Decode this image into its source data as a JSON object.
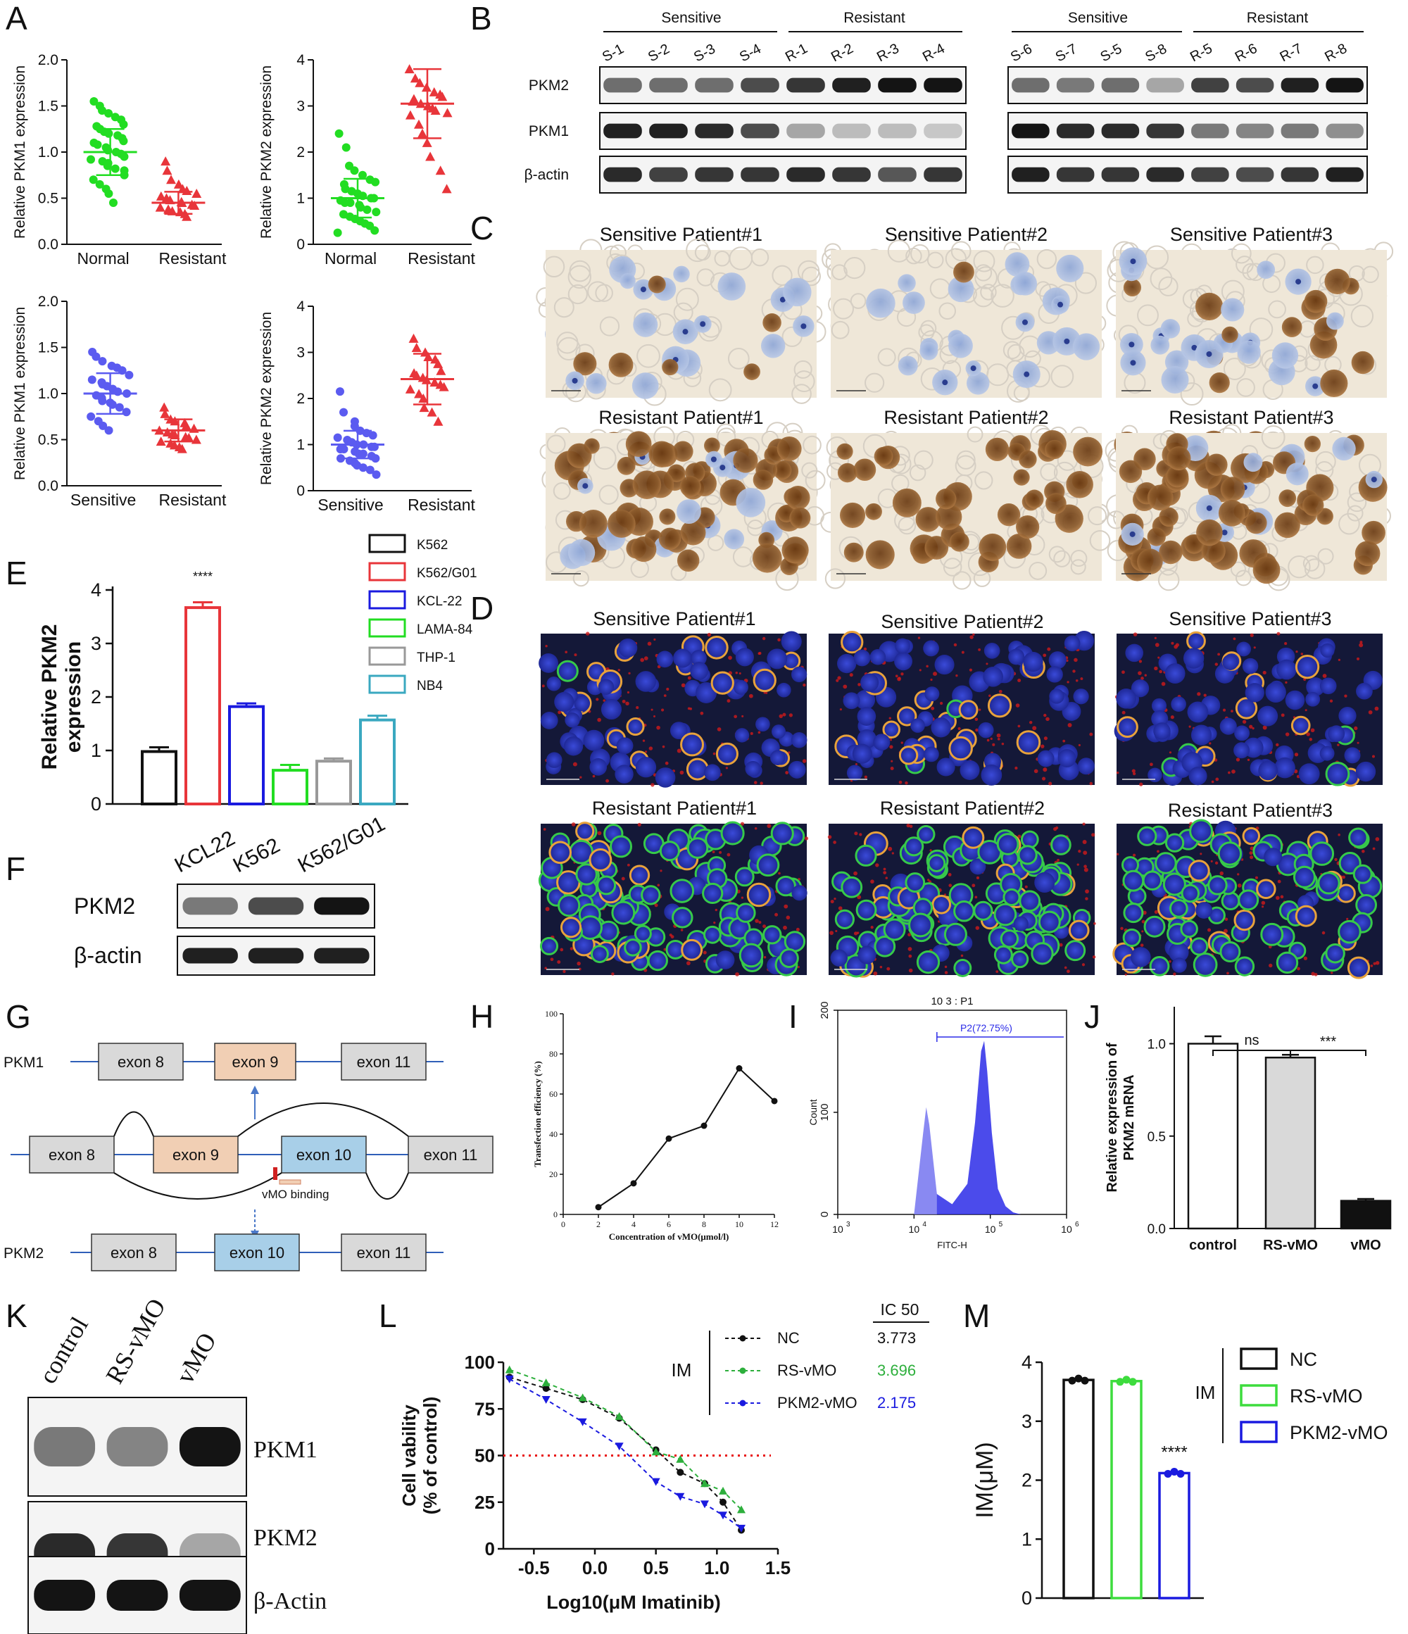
{
  "colors": {
    "green": "#22dd22",
    "red": "#e8353a",
    "blue": "#5b5bf0",
    "black": "#111111",
    "ihc_bg": "#efe7d8",
    "if_bg": "#141838",
    "exon_gray": "#d9d9d9",
    "exon_orange": "#f1cfb4",
    "exon_blue": "#a8cfe8",
    "nc_green": "#2daf3c",
    "pkm2_blue": "#1a1adf",
    "cutoff_red": "#e81010"
  },
  "panel_labels": [
    "A",
    "B",
    "C",
    "D",
    "E",
    "F",
    "G",
    "H",
    "I",
    "J",
    "K",
    "L",
    "M"
  ],
  "panel_a": {
    "plots": [
      {
        "ylabel": "Relative PKM1 expression",
        "ticks": [
          "0.0",
          "0.5",
          "1.0",
          "1.5",
          "2.0"
        ],
        "groups": [
          "Normal",
          "Resistant"
        ]
      },
      {
        "ylabel": "Relative PKM2 expression",
        "ticks": [
          "0",
          "1",
          "2",
          "3",
          "4"
        ],
        "groups": [
          "Normal",
          "Resistant"
        ]
      },
      {
        "ylabel": "Relative PKM1 expression",
        "ticks": [
          "0.0",
          "0.5",
          "1.0",
          "1.5",
          "2.0"
        ],
        "groups": [
          "Sensitive",
          "Resistant"
        ]
      },
      {
        "ylabel": "Relative PKM2 expression",
        "ticks": [
          "0",
          "1",
          "2",
          "3",
          "4"
        ],
        "groups": [
          "Sensitive",
          "Resistant"
        ]
      }
    ]
  },
  "panel_b": {
    "left": {
      "sensitive": "Sensitive",
      "resistant": "Resistant",
      "lanes": [
        "S-1",
        "S-2",
        "S-3",
        "S-4",
        "R-1",
        "R-2",
        "R-3",
        "R-4"
      ]
    },
    "right": {
      "sensitive": "Sensitive",
      "resistant": "Resistant",
      "lanes": [
        "S-6",
        "S-7",
        "S-5",
        "S-8",
        "R-5",
        "R-6",
        "R-7",
        "R-8"
      ]
    },
    "rows": [
      "PKM2",
      "PKM1",
      "β-actin"
    ]
  },
  "panel_c": {
    "titles": [
      "Sensitive Patient#1",
      "Sensitive Patient#2",
      "Sensitive Patient#3",
      "Resistant Patient#1",
      "Resistant Patient#2",
      "Resistant Patient#3"
    ]
  },
  "panel_d": {
    "titles": [
      "Sensitive Patient#1",
      "Sensitive Patient#2",
      "Sensitive Patient#3",
      "Resistant Patient#1",
      "Resistant Patient#2",
      "Resistant Patient#3"
    ]
  },
  "panel_e": {
    "ylabel_line1": "Relative PKM2",
    "ylabel_line2": "expression",
    "ticks": [
      "0",
      "1",
      "2",
      "3",
      "4"
    ],
    "significance": "****",
    "legend": [
      "K562",
      "K562/G01",
      "KCL-22",
      "LAMA-84",
      "THP-1",
      "NB4"
    ]
  },
  "panel_f": {
    "lanes": [
      "KCL22",
      "K562",
      "K562/G01"
    ],
    "rows": [
      "PKM2",
      "β-actin"
    ]
  },
  "panel_g": {
    "pkm1": "PKM1",
    "pkm2": "PKM2",
    "exon8": "exon 8",
    "exon9": "exon 9",
    "exon10": "exon 10",
    "exon11": "exon 11",
    "binding": "vMO binding"
  },
  "panel_h": {
    "ylabel": "Transfection efficiency (%)",
    "xlabel": "Concentration of vMO(μmol/l)",
    "yticks": [
      "0",
      "20",
      "40",
      "60",
      "80",
      "100"
    ],
    "xticks": [
      "0",
      "2",
      "4",
      "6",
      "8",
      "10",
      "12"
    ]
  },
  "panel_i": {
    "title": "10 3 : P1",
    "gate": "P2(72.75%)",
    "ylabel": "Count",
    "xlabel": "FITC-H",
    "yticks": [
      "0",
      "100",
      "200"
    ],
    "xticks": [
      "3",
      "4",
      "5",
      "6"
    ]
  },
  "panel_j": {
    "ylabel_line1": "Relative expression of",
    "ylabel_line2": "PKM2 mRNA",
    "ticks": [
      "0.0",
      "0.5",
      "1.0"
    ],
    "categories": [
      "control",
      "RS-vMO",
      "vMO"
    ],
    "sig1": "ns",
    "sig2": "***"
  },
  "panel_k": {
    "lanes": [
      "control",
      "RS-vMO",
      "vMO"
    ],
    "rows": [
      "PKM1",
      "PKM2",
      "β-Actin"
    ]
  },
  "panel_l": {
    "ylabel_line1": "Cell vability",
    "ylabel_line2": "(% of control)",
    "xlabel": "Log10(μM Imatinib)",
    "yticks": [
      "0",
      "25",
      "50",
      "75",
      "100"
    ],
    "xticks": [
      "-0.5",
      "0.0",
      "0.5",
      "1.0",
      "1.5"
    ],
    "ic50_header": "IC 50",
    "im_label": "IM",
    "legend": [
      {
        "name": "NC",
        "ic50": "3.773"
      },
      {
        "name": "RS-vMO",
        "ic50": "3.696"
      },
      {
        "name": "PKM2-vMO",
        "ic50": "2.175"
      }
    ]
  },
  "panel_m": {
    "ylabel": "IM(μM)",
    "ticks": [
      "0",
      "1",
      "2",
      "3",
      "4"
    ],
    "significance": "****",
    "im_label": "IM",
    "legend": [
      "NC",
      "RS-vMO",
      "PKM2-vMO"
    ]
  },
  "chart_data": [
    {
      "type": "scatter",
      "panel": "A1",
      "categories": [
        "Normal",
        "Resistant"
      ],
      "series": [
        {
          "values": [
            1.55,
            1.5,
            1.45,
            1.42,
            1.38,
            1.35,
            1.3,
            1.28,
            1.25,
            1.22,
            1.2,
            1.18,
            1.15,
            1.12,
            1.1,
            1.08,
            1.05,
            1.02,
            1.0,
            0.98,
            0.95,
            0.92,
            0.9,
            0.88,
            0.85,
            0.82,
            0.8,
            0.75,
            0.7,
            0.65,
            0.6,
            0.55,
            0.45
          ]
        },
        {
          "values": [
            0.9,
            0.8,
            0.7,
            0.65,
            0.6,
            0.58,
            0.55,
            0.52,
            0.5,
            0.48,
            0.46,
            0.45,
            0.43,
            0.42,
            0.4,
            0.38,
            0.36,
            0.35,
            0.33,
            0.3
          ]
        }
      ],
      "mean": [
        1.0,
        0.45
      ],
      "sd": [
        0.25,
        0.12
      ],
      "ylim": [
        0,
        2
      ]
    },
    {
      "type": "scatter",
      "panel": "A2",
      "categories": [
        "Normal",
        "Resistant"
      ],
      "series": [
        {
          "values": [
            2.4,
            2.1,
            1.7,
            1.6,
            1.5,
            1.4,
            1.35,
            1.3,
            1.2,
            1.15,
            1.1,
            1.05,
            1.0,
            1.0,
            0.95,
            0.9,
            0.9,
            0.85,
            0.8,
            0.75,
            0.7,
            0.65,
            0.6,
            0.55,
            0.5,
            0.45,
            0.4,
            0.3,
            0.25
          ]
        },
        {
          "values": [
            3.8,
            3.6,
            3.5,
            3.4,
            3.3,
            3.25,
            3.2,
            3.15,
            3.1,
            3.05,
            3.0,
            2.95,
            2.9,
            2.85,
            2.8,
            2.6,
            2.4,
            2.2,
            1.9,
            1.6,
            1.2
          ]
        },
        "mean_sd"
      ],
      "mean": [
        1.0,
        3.05
      ],
      "sd": [
        0.42,
        0.75
      ],
      "ylim": [
        0,
        4
      ]
    },
    {
      "type": "scatter",
      "panel": "A3",
      "categories": [
        "Sensitive",
        "Resistant"
      ],
      "series": [
        {
          "values": [
            1.45,
            1.4,
            1.35,
            1.3,
            1.28,
            1.25,
            1.2,
            1.15,
            1.12,
            1.1,
            1.08,
            1.05,
            1.02,
            1.0,
            0.98,
            0.95,
            0.92,
            0.9,
            0.88,
            0.85,
            0.8,
            0.75,
            0.7,
            0.65,
            0.6
          ]
        },
        {
          "values": [
            0.85,
            0.78,
            0.72,
            0.7,
            0.68,
            0.65,
            0.62,
            0.6,
            0.58,
            0.56,
            0.55,
            0.53,
            0.52,
            0.5,
            0.48,
            0.46,
            0.44,
            0.42,
            0.4
          ]
        }
      ],
      "mean": [
        1.0,
        0.6
      ],
      "sd": [
        0.22,
        0.12
      ],
      "ylim": [
        0,
        2
      ]
    },
    {
      "type": "scatter",
      "panel": "A4",
      "categories": [
        "Sensitive",
        "Resistant"
      ],
      "series": [
        {
          "values": [
            2.15,
            1.7,
            1.5,
            1.4,
            1.3,
            1.25,
            1.2,
            1.15,
            1.1,
            1.05,
            1.0,
            1.0,
            0.95,
            0.95,
            0.9,
            0.9,
            0.85,
            0.8,
            0.8,
            0.75,
            0.7,
            0.7,
            0.65,
            0.6,
            0.55,
            0.5,
            0.45,
            0.35
          ]
        },
        {
          "values": [
            3.3,
            3.1,
            3.0,
            2.9,
            2.85,
            2.75,
            2.6,
            2.55,
            2.5,
            2.45,
            2.4,
            2.35,
            2.3,
            2.25,
            2.2,
            2.1,
            2.0,
            1.8,
            1.7,
            1.5
          ]
        }
      ],
      "mean": [
        1.0,
        2.42
      ],
      "sd": [
        0.3,
        0.55
      ],
      "ylim": [
        0,
        4
      ]
    },
    {
      "type": "bar",
      "panel": "E",
      "categories": [
        "K562",
        "K562/G01",
        "KCL-22",
        "LAMA-84",
        "THP-1",
        "NB4"
      ],
      "values": [
        0.98,
        3.67,
        1.82,
        0.63,
        0.8,
        1.57
      ],
      "errors": [
        0.08,
        0.1,
        0.06,
        0.1,
        0.05,
        0.08
      ],
      "ylim": [
        0,
        4
      ]
    },
    {
      "type": "line",
      "panel": "H",
      "x": [
        2,
        4,
        6,
        8,
        10,
        12
      ],
      "values": [
        3.6,
        15.5,
        37.8,
        44.2,
        72.8,
        56.5
      ],
      "xlim": [
        0,
        12
      ],
      "ylim": [
        0,
        100
      ]
    },
    {
      "type": "area",
      "panel": "I",
      "x_log10": [
        4.0,
        4.12,
        4.16,
        4.2,
        4.3,
        4.5,
        4.7,
        4.8,
        4.88,
        4.92,
        4.96,
        5.02,
        5.1,
        5.2,
        5.3,
        5.4
      ],
      "values": [
        0,
        80,
        105,
        88,
        20,
        10,
        30,
        90,
        160,
        170,
        140,
        80,
        25,
        8,
        2,
        0
      ],
      "gate_log10": [
        4.3,
        6.0
      ],
      "xlim_log10": [
        3,
        6
      ],
      "ylim": [
        0,
        200
      ]
    },
    {
      "type": "bar",
      "panel": "J",
      "categories": [
        "control",
        "RS-vMO",
        "vMO"
      ],
      "values": [
        1.0,
        0.925,
        0.15
      ],
      "errors": [
        0.04,
        0.015,
        0.01
      ],
      "ylim": [
        0,
        1.2
      ]
    },
    {
      "type": "scatter",
      "panel": "L",
      "x": [
        -0.7,
        -0.4,
        -0.1,
        0.2,
        0.5,
        0.7,
        0.9,
        1.05,
        1.2
      ],
      "series": [
        {
          "name": "NC",
          "values": [
            92,
            86,
            80,
            70,
            53,
            41,
            35,
            25,
            10
          ]
        },
        {
          "name": "RS-vMO",
          "values": [
            96,
            89,
            81,
            71,
            52,
            48,
            35,
            31,
            21
          ]
        },
        {
          "name": "PKM2-vMO",
          "values": [
            91,
            80,
            68,
            55,
            36,
            28,
            24,
            18,
            11
          ]
        }
      ],
      "cutoff": 50,
      "xlim": [
        -0.75,
        1.5
      ],
      "ylim": [
        0,
        100
      ]
    },
    {
      "type": "bar",
      "panel": "M",
      "categories": [
        "NC",
        "RS-vMO",
        "PKM2-vMO"
      ],
      "values": [
        3.7,
        3.68,
        2.12
      ],
      "errors": [
        0.04,
        0.03,
        0.03
      ],
      "ylim": [
        0,
        4
      ]
    }
  ]
}
